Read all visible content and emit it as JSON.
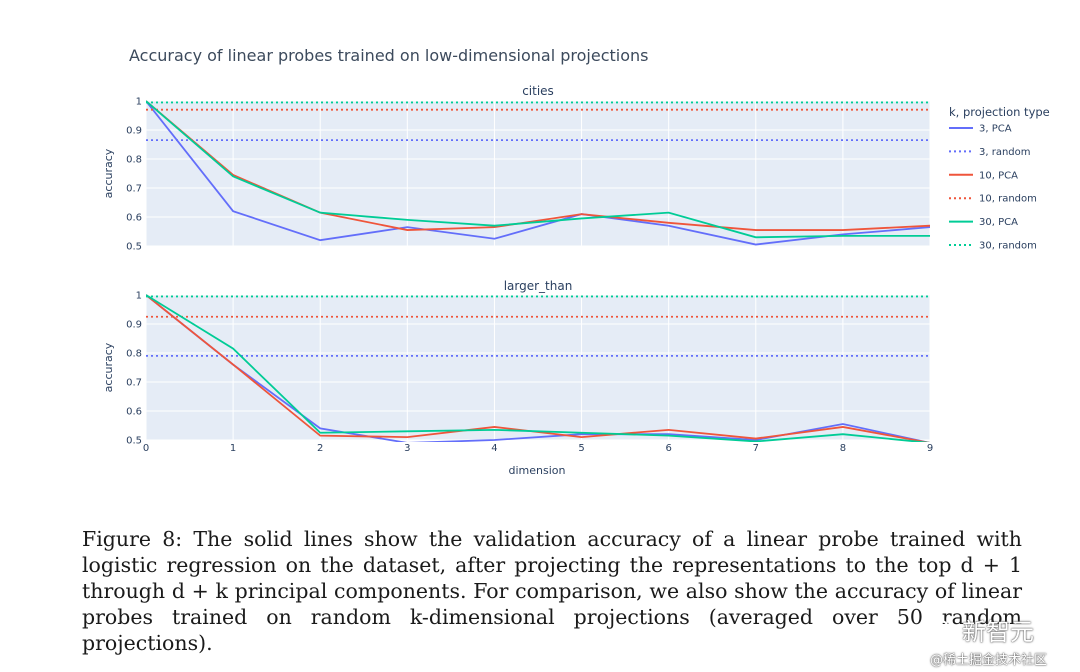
{
  "chart_data": {
    "type": "line",
    "title": "Accuracy of linear probes trained on low-dimensional projections",
    "xlabel": "dimension",
    "ylabel": "accuracy",
    "legend_title": "k, projection type",
    "x": [
      0,
      1,
      2,
      3,
      4,
      5,
      6,
      7,
      8,
      9
    ],
    "x_ticks": [
      "0",
      "1",
      "2",
      "3",
      "4",
      "5",
      "6",
      "7",
      "8",
      "9"
    ],
    "xlim": [
      0,
      9
    ],
    "ylim": [
      0.5,
      1.0
    ],
    "y_ticks": [
      "0.5",
      "0.6",
      "0.7",
      "0.8",
      "0.9",
      "1"
    ],
    "legend_position": "right",
    "grid": true,
    "series_styles": [
      {
        "name": "3, PCA",
        "color": "#636efa",
        "dash": "solid"
      },
      {
        "name": "3, random",
        "color": "#636efa",
        "dash": "dot"
      },
      {
        "name": "10, PCA",
        "color": "#ef553b",
        "dash": "solid"
      },
      {
        "name": "10, random",
        "color": "#ef553b",
        "dash": "dot"
      },
      {
        "name": "30, PCA",
        "color": "#00cc96",
        "dash": "solid"
      },
      {
        "name": "30, random",
        "color": "#00cc96",
        "dash": "dot"
      }
    ],
    "panels": [
      {
        "name": "cities",
        "series": [
          {
            "name": "3, PCA",
            "values": [
              1.0,
              0.62,
              0.52,
              0.565,
              0.525,
              0.61,
              0.57,
              0.505,
              0.54,
              0.565
            ]
          },
          {
            "name": "3, random",
            "values": [
              0.865,
              0.865,
              0.865,
              0.865,
              0.865,
              0.865,
              0.865,
              0.865,
              0.865,
              0.865
            ]
          },
          {
            "name": "10, PCA",
            "values": [
              1.0,
              0.745,
              0.615,
              0.555,
              0.565,
              0.61,
              0.58,
              0.555,
              0.555,
              0.57
            ]
          },
          {
            "name": "10, random",
            "values": [
              0.97,
              0.97,
              0.97,
              0.97,
              0.97,
              0.97,
              0.97,
              0.97,
              0.97,
              0.97
            ]
          },
          {
            "name": "30, PCA",
            "values": [
              1.0,
              0.74,
              0.615,
              0.59,
              0.57,
              0.595,
              0.615,
              0.53,
              0.535,
              0.535
            ]
          },
          {
            "name": "30, random",
            "values": [
              0.995,
              0.995,
              0.995,
              0.995,
              0.995,
              0.995,
              0.995,
              0.995,
              0.995,
              0.995
            ]
          }
        ]
      },
      {
        "name": "larger_than",
        "series": [
          {
            "name": "3, PCA",
            "values": [
              1.0,
              0.76,
              0.54,
              0.49,
              0.5,
              0.52,
              0.52,
              0.5,
              0.555,
              0.49
            ]
          },
          {
            "name": "3, random",
            "values": [
              0.79,
              0.79,
              0.79,
              0.79,
              0.79,
              0.79,
              0.79,
              0.79,
              0.79,
              0.79
            ]
          },
          {
            "name": "10, PCA",
            "values": [
              1.0,
              0.76,
              0.515,
              0.51,
              0.545,
              0.51,
              0.535,
              0.505,
              0.545,
              0.49
            ]
          },
          {
            "name": "10, random",
            "values": [
              0.925,
              0.925,
              0.925,
              0.925,
              0.925,
              0.925,
              0.925,
              0.925,
              0.925,
              0.925
            ]
          },
          {
            "name": "30, PCA",
            "values": [
              1.0,
              0.815,
              0.525,
              0.53,
              0.535,
              0.525,
              0.515,
              0.495,
              0.52,
              0.49
            ]
          },
          {
            "name": "30, random",
            "values": [
              0.995,
              0.995,
              0.995,
              0.995,
              0.995,
              0.995,
              0.995,
              0.995,
              0.995,
              0.995
            ]
          }
        ]
      }
    ]
  },
  "caption": {
    "text": "Figure 8: The solid lines show the validation accuracy of a linear probe trained with logistic regression on the dataset, after projecting the representations to the top d + 1 through d + k principal components. For comparison, we also show the accuracy of linear probes trained on random k-dimensional projections (averaged over 50 random projections)."
  },
  "watermark": {
    "brand": "新智元",
    "site": "@稀土掘金技术社区"
  }
}
